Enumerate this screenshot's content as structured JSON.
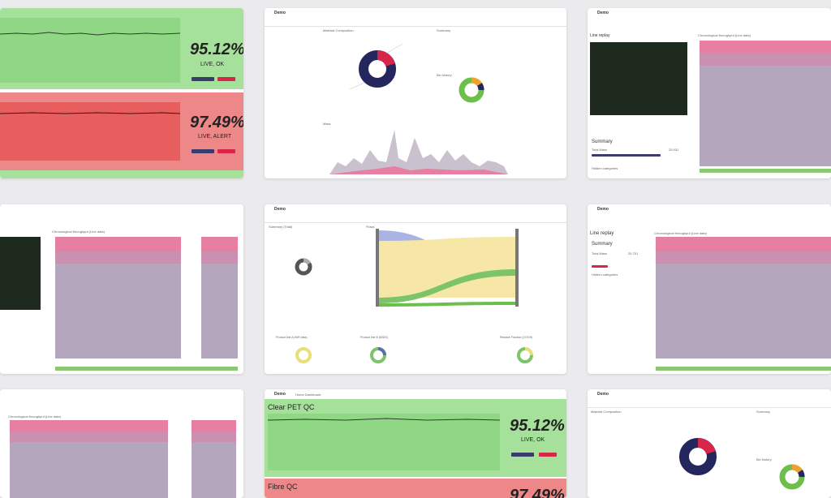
{
  "screens": {
    "qc_top": {
      "green_panel": {
        "percent": "95.12%",
        "status": "LIVE, OK"
      },
      "red_panel": {
        "percent": "97.49%",
        "status": "LIVE, ALERT"
      }
    },
    "qc_bottom": {
      "app_name": "Demo",
      "nav_section": "Home Dashboard",
      "panel_title": "Clear PET QC",
      "panel_title_2": "Fibre QC",
      "percent": "95.12%",
      "status": "LIVE, OK",
      "percent_2": "97.49%"
    },
    "material": {
      "app_name": "Demo",
      "section_1": "Material Composition",
      "section_2": "Summary",
      "section_3": "Bin history",
      "section_4": "Mass"
    },
    "line_replay_top": {
      "app_name": "Demo",
      "sidebar_title": "Line replay",
      "chart_title": "Chronological throughput (Line data)",
      "summary": {
        "title": "Summary",
        "total_mass_label": "Total Mass",
        "total_mass_value": "25.931",
        "hidden_label": "Hidden categories"
      }
    },
    "line_mid_left": {
      "chart_title": "Chronological throughput (Line data)"
    },
    "sankey": {
      "app_name": "Demo",
      "section_1": "Summary (Total)",
      "section_2": "Flows",
      "donut_labels": [
        "Product line A (NIR data)",
        "Product line B (MIDS)",
        "Residue Fraction (COGS)"
      ]
    },
    "line_replay_mid": {
      "app_name": "Demo",
      "sidebar_title": "Line replay",
      "summary": {
        "title": "Summary",
        "total_mass_label": "Total Mass",
        "total_mass_value": "25.751",
        "hidden_label": "Hidden categories"
      },
      "chart_title": "Chronological throughput (Line data)"
    },
    "line_bottom_left": {
      "chart_title": "Chronological throughput (Line data)"
    },
    "material_bottom": {
      "app_name": "Demo",
      "section_1": "Material Composition",
      "section_2": "Summary",
      "section_3": "Bin history"
    }
  },
  "colors": {
    "ok_green": "#93d88a",
    "alert_red": "#ec6b6b",
    "navy": "#24275e",
    "pink": "#d8264a",
    "bar_mauve": "#b4a7bd",
    "bar_pink": "#e77fa3",
    "status_green": "#8dc772"
  }
}
